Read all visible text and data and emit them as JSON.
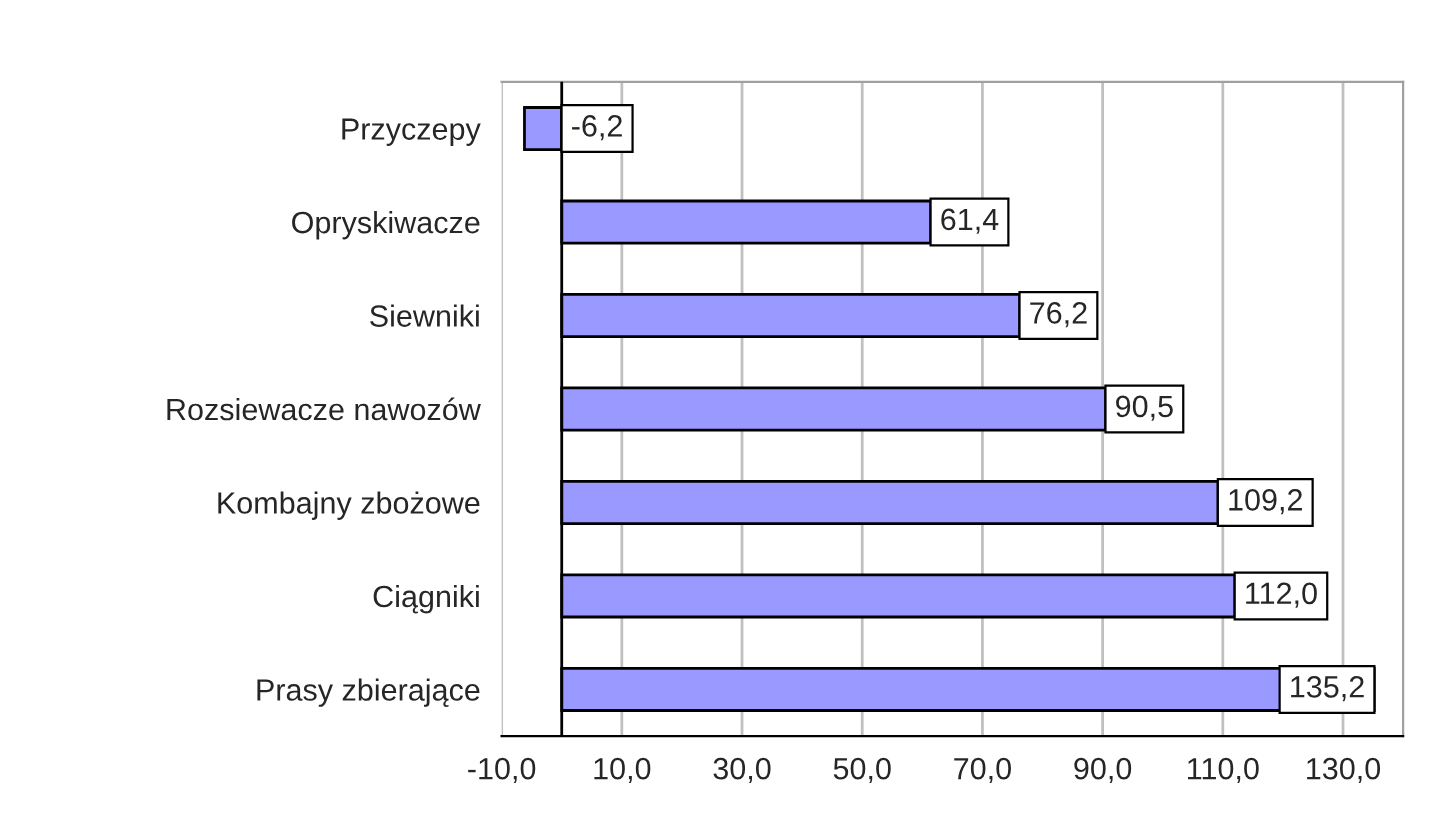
{
  "chart_data": {
    "type": "bar",
    "orientation": "horizontal",
    "categories": [
      "Przyczepy",
      "Opryskiwacze",
      "Siewniki",
      "Rozsiewacze nawozów",
      "Kombajny zbożowe",
      "Ciągniki",
      "Prasy zbierające"
    ],
    "values": [
      -6.2,
      61.4,
      76.2,
      90.5,
      109.2,
      112.0,
      135.2
    ],
    "value_labels": [
      "-6,2",
      "61,4",
      "76,2",
      "90,5",
      "109,2",
      "112,0",
      "135,2"
    ],
    "color": "#9999ff",
    "xlim": [
      -10,
      140
    ],
    "xticks": [
      {
        "value": -10,
        "label": "-10,0"
      },
      {
        "value": 10,
        "label": "10,0"
      },
      {
        "value": 30,
        "label": "30,0"
      },
      {
        "value": 50,
        "label": "50,0"
      },
      {
        "value": 70,
        "label": "70,0"
      },
      {
        "value": 90,
        "label": "90,0"
      },
      {
        "value": 110,
        "label": "110,0"
      },
      {
        "value": 130,
        "label": "130,0"
      }
    ],
    "grid": "x"
  }
}
